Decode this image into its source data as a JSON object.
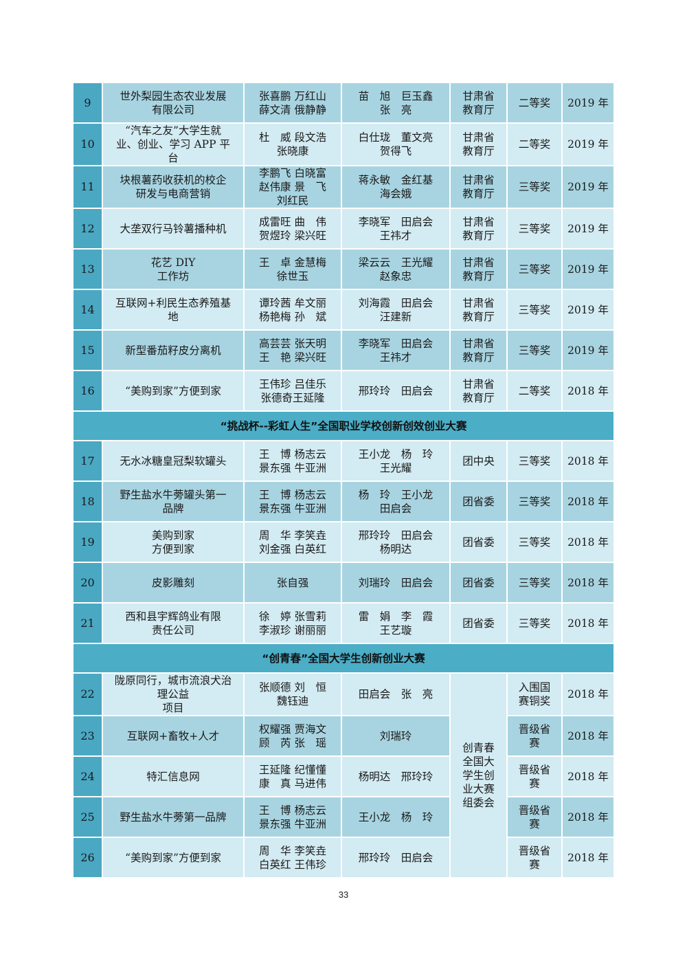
{
  "colors": {
    "number_column": "#4aa8c3",
    "row_dark": "#a8d4e1",
    "row_light": "#d3ebf2",
    "banner": "#4badc6"
  },
  "table": {
    "rows": [
      {
        "type": "row",
        "shade": "dark",
        "no": "9",
        "project": [
          "世外梨园生态农业发展",
          "有限公司"
        ],
        "members": [
          "张喜鹏 万红山",
          "薛文清 俄静静"
        ],
        "advisors": [
          "苗　旭　巨玉鑫",
          "张　亮"
        ],
        "organizer": [
          "甘肃省",
          "教育厅"
        ],
        "award": [
          "二等奖"
        ],
        "year": "2019 年"
      },
      {
        "type": "row",
        "shade": "light",
        "no": "10",
        "project": [
          "“汽车之友”大学生就",
          "业、创业、学习 APP 平",
          "台"
        ],
        "members": [
          "杜　威 段文浩",
          "张晓康"
        ],
        "advisors": [
          "白仕珑　董文亮",
          "贺得飞"
        ],
        "organizer": [
          "甘肃省",
          "教育厅"
        ],
        "award": [
          "二等奖"
        ],
        "year": "2019 年"
      },
      {
        "type": "row",
        "shade": "dark",
        "no": "11",
        "project": [
          "块根薯药收获机的校企",
          "研发与电商营销"
        ],
        "members": [
          "李鹏飞 白晓富",
          "赵伟康 景　飞",
          "刘红民"
        ],
        "advisors": [
          "蒋永敏　金红基",
          "海会娥"
        ],
        "organizer": [
          "甘肃省",
          "教育厅"
        ],
        "award": [
          "三等奖"
        ],
        "year": "2019 年"
      },
      {
        "type": "row",
        "shade": "light",
        "no": "12",
        "project": [
          "大垄双行马铃薯播种机"
        ],
        "members": [
          "成雷旺 曲　伟",
          "贺煜玲 梁兴旺"
        ],
        "advisors": [
          "李晓军　田启会",
          "王祎才"
        ],
        "organizer": [
          "甘肃省",
          "教育厅"
        ],
        "award": [
          "三等奖"
        ],
        "year": "2019 年"
      },
      {
        "type": "row",
        "shade": "dark",
        "no": "13",
        "project": [
          "花艺 DIY",
          "工作坊"
        ],
        "members": [
          "王　卓 金慧梅",
          "徐世玉"
        ],
        "advisors": [
          "梁云云　王光耀",
          "赵象忠"
        ],
        "organizer": [
          "甘肃省",
          "教育厅"
        ],
        "award": [
          "三等奖"
        ],
        "year": "2019 年"
      },
      {
        "type": "row",
        "shade": "light",
        "no": "14",
        "project": [
          "互联网+利民生态养殖基",
          "地"
        ],
        "members": [
          "谭玲茜 牟文丽",
          "杨艳梅 孙　斌"
        ],
        "advisors": [
          "刘海霞　田启会",
          "汪建新"
        ],
        "organizer": [
          "甘肃省",
          "教育厅"
        ],
        "award": [
          "三等奖"
        ],
        "year": "2019 年"
      },
      {
        "type": "row",
        "shade": "dark",
        "no": "15",
        "project": [
          "新型番茄籽皮分离机"
        ],
        "members": [
          "高芸芸 张天明",
          "王　艳 梁兴旺"
        ],
        "advisors": [
          "李晓军　田启会",
          "王祎才"
        ],
        "organizer": [
          "甘肃省",
          "教育厅"
        ],
        "award": [
          "三等奖"
        ],
        "year": "2019 年"
      },
      {
        "type": "row",
        "shade": "light",
        "no": "16",
        "project": [
          "“美购到家”方便到家"
        ],
        "members": [
          "王伟珍 吕佳乐",
          "张德奇王延隆"
        ],
        "advisors": [
          "邢玲玲　田启会"
        ],
        "organizer": [
          "甘肃省",
          "教育厅"
        ],
        "award": [
          "二等奖"
        ],
        "year": "2018 年"
      },
      {
        "type": "banner",
        "text": "“挑战杯--彩虹人生”全国职业学校创新创效创业大赛"
      },
      {
        "type": "row",
        "shade": "light",
        "no": "17",
        "project": [
          "无水冰糖皇冠梨软罐头"
        ],
        "members": [
          "王　博 杨志云",
          "景东强 牛亚洲"
        ],
        "advisors": [
          "王小龙　杨　玲",
          "王光耀"
        ],
        "organizer": [
          "团中央"
        ],
        "award": [
          "三等奖"
        ],
        "year": "2018 年"
      },
      {
        "type": "row",
        "shade": "dark",
        "no": "18",
        "project": [
          "野生盐水牛蒡罐头第一",
          "品牌"
        ],
        "members": [
          "王　博 杨志云",
          "景东强 牛亚洲"
        ],
        "advisors": [
          "杨　玲　王小龙",
          "田启会"
        ],
        "organizer": [
          "团省委"
        ],
        "award": [
          "三等奖"
        ],
        "year": "2018 年"
      },
      {
        "type": "row",
        "shade": "light",
        "no": "19",
        "project": [
          "美购到家",
          "方便到家"
        ],
        "members": [
          "周　华 李笑垚",
          "刘金强 白英红"
        ],
        "advisors": [
          "邢玲玲　田启会",
          "杨明达"
        ],
        "organizer": [
          "团省委"
        ],
        "award": [
          "三等奖"
        ],
        "year": "2018 年"
      },
      {
        "type": "row",
        "shade": "dark",
        "no": "20",
        "project": [
          "皮影雕刻"
        ],
        "members": [
          "张自强"
        ],
        "advisors": [
          "刘瑞玲　田启会"
        ],
        "organizer": [
          "团省委"
        ],
        "award": [
          "三等奖"
        ],
        "year": "2018 年"
      },
      {
        "type": "row",
        "shade": "light",
        "no": "21",
        "project": [
          "西和县宇辉鸽业有限",
          "责任公司"
        ],
        "members": [
          "徐　婷 张雪莉",
          "李淑珍 谢丽丽"
        ],
        "advisors": [
          "雷　娟　李　霞",
          "王艺璇"
        ],
        "organizer": [
          "团省委"
        ],
        "award": [
          "三等奖"
        ],
        "year": "2018 年"
      },
      {
        "type": "banner",
        "text": "“创青春”全国大学生创新创业大赛"
      },
      {
        "type": "row",
        "shade": "light",
        "no": "22",
        "project": [
          "陇原同行，城市流浪犬治",
          "理公益",
          "项目"
        ],
        "members": [
          "张顺德 刘　恒",
          "魏钰迪"
        ],
        "advisors": [
          "田启会　张　亮"
        ],
        "organizer_merged": {
          "rowspan": 5,
          "lines": [
            "创青春",
            "全国大",
            "学生创",
            "业大赛",
            "组委会"
          ]
        },
        "award": [
          "入围国",
          "赛铜奖"
        ],
        "year": "2018 年"
      },
      {
        "type": "row",
        "shade": "dark",
        "no": "23",
        "project": [
          "互联网+畜牧+人才"
        ],
        "members": [
          "权耀强 贾海文",
          "顾　芮 张　瑶"
        ],
        "advisors": [
          "刘瑞玲"
        ],
        "award": [
          "晋级省",
          "赛"
        ],
        "year": "2018 年"
      },
      {
        "type": "row",
        "shade": "light",
        "no": "24",
        "project": [
          "特汇信息网"
        ],
        "members": [
          "王延隆 纪懂懂",
          "康　真 马进伟"
        ],
        "advisors": [
          "杨明达　邢玲玲"
        ],
        "award": [
          "晋级省",
          "赛"
        ],
        "year": "2018 年"
      },
      {
        "type": "row",
        "shade": "dark",
        "no": "25",
        "project": [
          "野生盐水牛蒡第一品牌"
        ],
        "members": [
          "王　博 杨志云",
          "景东强 牛亚洲"
        ],
        "advisors": [
          "王小龙　杨　玲"
        ],
        "award": [
          "晋级省",
          "赛"
        ],
        "year": "2018 年"
      },
      {
        "type": "row",
        "shade": "light",
        "no": "26",
        "project": [
          "“美购到家”方便到家"
        ],
        "members": [
          "周　华 李笑垚",
          "白英红 王伟珍"
        ],
        "advisors": [
          "邢玲玲　田启会"
        ],
        "award": [
          "晋级省",
          "赛"
        ],
        "year": "2018 年"
      }
    ]
  },
  "page_number": "33"
}
